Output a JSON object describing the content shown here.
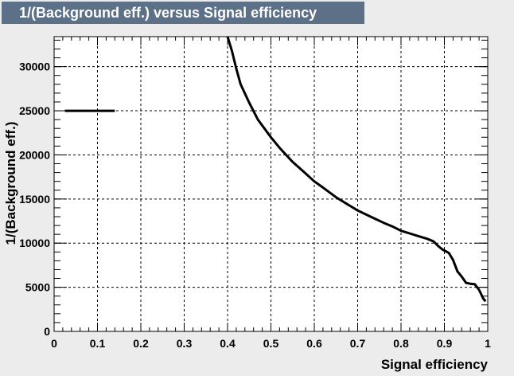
{
  "chart_data": {
    "type": "line",
    "title": "1/(Background eff.) versus Signal efficiency",
    "xlabel": "Signal efficiency",
    "ylabel": "1/(Background eff.)",
    "xlim": [
      0,
      1
    ],
    "ylim": [
      0,
      33400
    ],
    "x_ticks": [
      "0",
      "0.1",
      "0.2",
      "0.3",
      "0.4",
      "0.5",
      "0.6",
      "0.7",
      "0.8",
      "0.9",
      "1"
    ],
    "y_ticks": [
      "0",
      "5000",
      "10000",
      "15000",
      "20000",
      "25000",
      "30000"
    ],
    "grid": true,
    "series": [
      {
        "segments": [
          [
            [
              0.025,
              25000
            ],
            [
              0.14,
              25000
            ]
          ],
          [
            [
              0.4,
              33400
            ],
            [
              0.41,
              31800
            ],
            [
              0.42,
              29800
            ],
            [
              0.43,
              28000
            ],
            [
              0.45,
              25900
            ],
            [
              0.47,
              24000
            ],
            [
              0.5,
              22000
            ],
            [
              0.52,
              20800
            ],
            [
              0.55,
              19200
            ],
            [
              0.58,
              17900
            ],
            [
              0.6,
              17000
            ],
            [
              0.62,
              16300
            ],
            [
              0.65,
              15200
            ],
            [
              0.68,
              14300
            ],
            [
              0.7,
              13700
            ],
            [
              0.73,
              13000
            ],
            [
              0.76,
              12300
            ],
            [
              0.78,
              11900
            ],
            [
              0.8,
              11400
            ],
            [
              0.82,
              11100
            ],
            [
              0.84,
              10800
            ],
            [
              0.86,
              10500
            ],
            [
              0.875,
              10200
            ],
            [
              0.885,
              9700
            ],
            [
              0.895,
              9300
            ],
            [
              0.91,
              8900
            ],
            [
              0.92,
              8100
            ],
            [
              0.93,
              6800
            ],
            [
              0.94,
              6200
            ],
            [
              0.95,
              5500
            ],
            [
              0.96,
              5400
            ],
            [
              0.97,
              5350
            ],
            [
              0.98,
              4700
            ],
            [
              0.99,
              3700
            ],
            [
              0.995,
              3400
            ]
          ]
        ]
      }
    ]
  }
}
